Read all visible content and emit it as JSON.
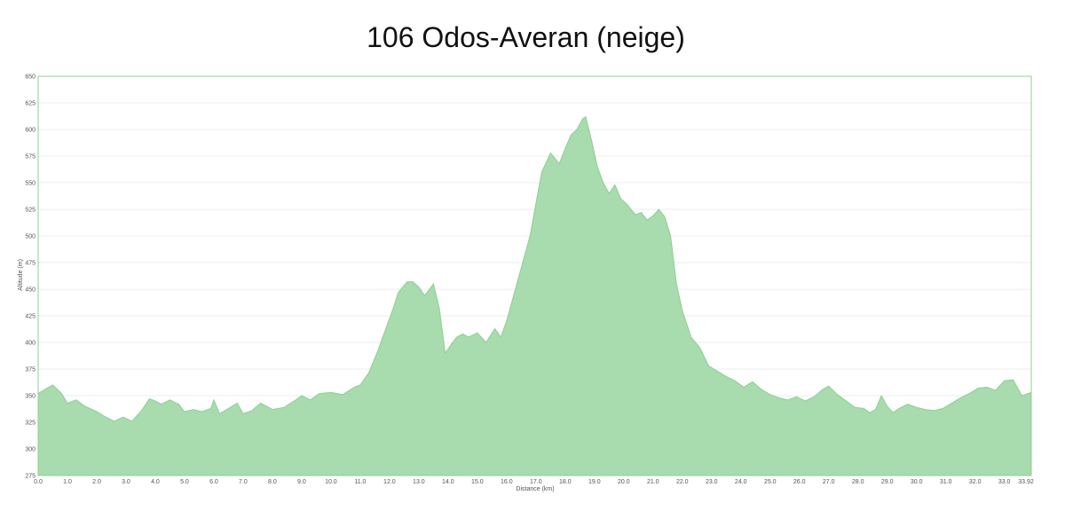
{
  "chart_data": {
    "type": "area",
    "title": "106 Odos-Averan (neige)",
    "xlabel": "Distance  (km)",
    "ylabel": "Altitude (m)",
    "xlim": [
      0,
      33.92
    ],
    "ylim": [
      275,
      650
    ],
    "grid": true,
    "fill_color": "#a8dbad",
    "stroke_color": "#8fcf95",
    "x_ticks": [
      "0.0",
      "1.0",
      "2.0",
      "3.0",
      "4.0",
      "5.0",
      "6.0",
      "7.0",
      "8.0",
      "9.0",
      "10.0",
      "11.0",
      "12.0",
      "13.0",
      "14.0",
      "15.0",
      "16.0",
      "17.0",
      "18.0",
      "19.0",
      "20.0",
      "21.0",
      "22.0",
      "23.0",
      "24.0",
      "25.0",
      "26.0",
      "27.0",
      "28.0",
      "29.0",
      "30.0",
      "31.0",
      "32.0",
      "33.0",
      "33.92"
    ],
    "y_ticks": [
      "275",
      "300",
      "325",
      "350",
      "375",
      "400",
      "425",
      "450",
      "475",
      "500",
      "525",
      "550",
      "575",
      "600",
      "625",
      "650"
    ],
    "x": [
      0,
      0.3,
      0.5,
      0.8,
      1.0,
      1.3,
      1.6,
      2.0,
      2.3,
      2.6,
      2.9,
      3.2,
      3.5,
      3.8,
      4.0,
      4.2,
      4.5,
      4.8,
      5.0,
      5.3,
      5.6,
      5.9,
      6.0,
      6.2,
      6.5,
      6.8,
      7.0,
      7.3,
      7.6,
      8.0,
      8.4,
      8.8,
      9.0,
      9.3,
      9.6,
      10.0,
      10.4,
      10.8,
      11.0,
      11.3,
      11.6,
      11.9,
      12.1,
      12.3,
      12.6,
      12.8,
      13.0,
      13.2,
      13.5,
      13.7,
      13.9,
      14.1,
      14.3,
      14.5,
      14.7,
      15.0,
      15.3,
      15.6,
      15.8,
      16.0,
      16.2,
      16.5,
      16.8,
      17.0,
      17.2,
      17.5,
      17.8,
      18.0,
      18.2,
      18.4,
      18.6,
      18.7,
      18.9,
      19.1,
      19.3,
      19.5,
      19.7,
      19.9,
      20.1,
      20.4,
      20.6,
      20.8,
      21.0,
      21.2,
      21.4,
      21.6,
      21.8,
      22.0,
      22.3,
      22.6,
      22.9,
      23.2,
      23.5,
      23.8,
      24.1,
      24.4,
      24.7,
      25.0,
      25.3,
      25.6,
      25.9,
      26.2,
      26.5,
      26.8,
      27.0,
      27.3,
      27.6,
      27.9,
      28.2,
      28.4,
      28.6,
      28.8,
      29.0,
      29.2,
      29.4,
      29.7,
      30.0,
      30.3,
      30.6,
      30.9,
      31.2,
      31.5,
      31.8,
      32.1,
      32.4,
      32.7,
      33.0,
      33.3,
      33.6,
      33.92
    ],
    "y": [
      352,
      357,
      360,
      352,
      343,
      346,
      340,
      335,
      330,
      326,
      330,
      326,
      335,
      347,
      345,
      342,
      346,
      342,
      335,
      337,
      335,
      338,
      346,
      333,
      338,
      343,
      333,
      336,
      343,
      337,
      339,
      346,
      350,
      346,
      352,
      353,
      351,
      358,
      360,
      372,
      392,
      415,
      430,
      447,
      457,
      457,
      452,
      444,
      455,
      432,
      390,
      398,
      405,
      408,
      405,
      409,
      400,
      413,
      405,
      420,
      440,
      470,
      500,
      530,
      560,
      578,
      568,
      582,
      595,
      600,
      610,
      612,
      590,
      565,
      550,
      540,
      548,
      535,
      530,
      520,
      522,
      515,
      519,
      525,
      518,
      500,
      455,
      430,
      405,
      395,
      378,
      373,
      368,
      364,
      358,
      363,
      356,
      351,
      348,
      346,
      349,
      345,
      349,
      356,
      359,
      351,
      345,
      339,
      338,
      334,
      337,
      350,
      340,
      334,
      338,
      342,
      339,
      337,
      336,
      338,
      343,
      348,
      352,
      357,
      358,
      355,
      364,
      365,
      350,
      353
    ]
  }
}
